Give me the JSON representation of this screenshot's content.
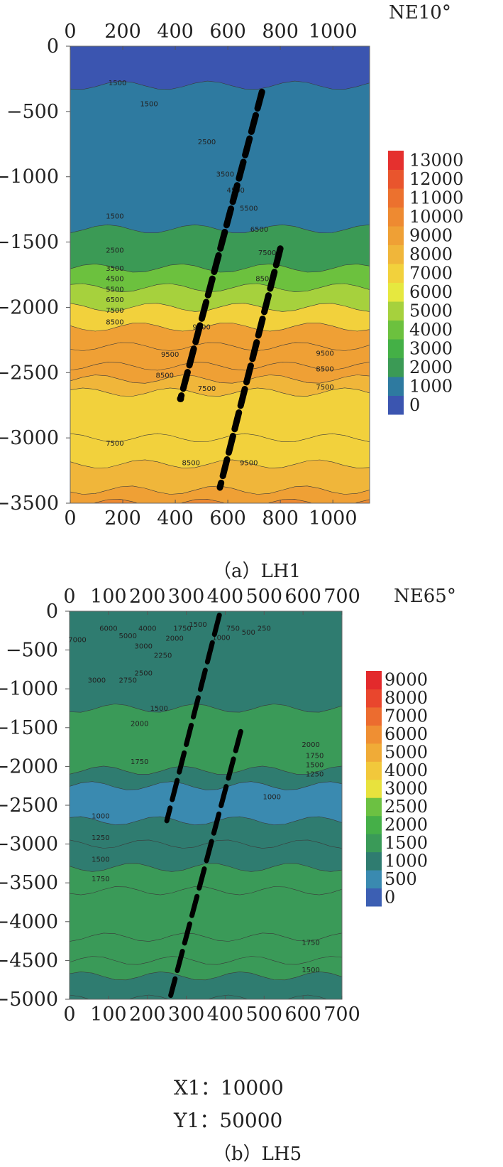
{
  "chart_data": [
    {
      "type": "heatmap",
      "orientation": "NE10°",
      "caption": "（a）LH1",
      "x_ticks": [
        0,
        200,
        400,
        600,
        800,
        1000
      ],
      "y_ticks": [
        0,
        -500,
        -1000,
        -1500,
        -2000,
        -2500,
        -3000,
        -3500
      ],
      "xlim": [
        0,
        1140
      ],
      "ylim": [
        -3500,
        0
      ],
      "colorbar": {
        "ticks": [
          0,
          1000,
          2000,
          3000,
          4000,
          5000,
          6000,
          7000,
          8000,
          9000,
          10000,
          11000,
          12000,
          13000
        ],
        "colors": [
          "#3b55b0",
          "#2e7aa0",
          "#3b9a55",
          "#44b046",
          "#6cc13e",
          "#a6d13d",
          "#e6e83f",
          "#f2d13c",
          "#f0b63a",
          "#efa035",
          "#ee8a31",
          "#ec712e",
          "#e9552d",
          "#e5302e"
        ]
      },
      "bands": [
        {
          "depth": 0,
          "value": 400
        },
        {
          "depth": -300,
          "value": 1200
        },
        {
          "depth": -1400,
          "value": 2500
        },
        {
          "depth": -1700,
          "value": 4000
        },
        {
          "depth": -1850,
          "value": 5500
        },
        {
          "depth": -2000,
          "value": 7500
        },
        {
          "depth": -2150,
          "value": 9000
        },
        {
          "depth": -2300,
          "value": 9800
        },
        {
          "depth": -2450,
          "value": 9000
        },
        {
          "depth": -2550,
          "value": 8000
        },
        {
          "depth": -2650,
          "value": 7000
        },
        {
          "depth": -3000,
          "value": 7200
        },
        {
          "depth": -3200,
          "value": 8200
        },
        {
          "depth": -3400,
          "value": 9500
        },
        {
          "depth": -3500,
          "value": 10500
        }
      ],
      "contour_labels": [
        {
          "text": "1500",
          "x": 180,
          "y": -300
        },
        {
          "text": "1500",
          "x": 300,
          "y": -460
        },
        {
          "text": "2500",
          "x": 520,
          "y": -750
        },
        {
          "text": "3500",
          "x": 590,
          "y": -1000
        },
        {
          "text": "4500",
          "x": 630,
          "y": -1120
        },
        {
          "text": "5500",
          "x": 680,
          "y": -1260
        },
        {
          "text": "6500",
          "x": 720,
          "y": -1420
        },
        {
          "text": "7500",
          "x": 750,
          "y": -1600
        },
        {
          "text": "8500",
          "x": 740,
          "y": -1800
        },
        {
          "text": "1500",
          "x": 170,
          "y": -1320
        },
        {
          "text": "2500",
          "x": 170,
          "y": -1580
        },
        {
          "text": "3500",
          "x": 170,
          "y": -1720
        },
        {
          "text": "4500",
          "x": 170,
          "y": -1800
        },
        {
          "text": "5500",
          "x": 170,
          "y": -1880
        },
        {
          "text": "6500",
          "x": 170,
          "y": -1960
        },
        {
          "text": "7500",
          "x": 170,
          "y": -2040
        },
        {
          "text": "8500",
          "x": 170,
          "y": -2130
        },
        {
          "text": "9500",
          "x": 380,
          "y": -2380
        },
        {
          "text": "8500",
          "x": 360,
          "y": -2540
        },
        {
          "text": "7500",
          "x": 520,
          "y": -2640
        },
        {
          "text": "9500",
          "x": 500,
          "y": -2170
        },
        {
          "text": "9500",
          "x": 970,
          "y": -2370
        },
        {
          "text": "8500",
          "x": 970,
          "y": -2490
        },
        {
          "text": "7500",
          "x": 970,
          "y": -2630
        },
        {
          "text": "7500",
          "x": 170,
          "y": -3060
        },
        {
          "text": "8500",
          "x": 460,
          "y": -3210
        },
        {
          "text": "9500",
          "x": 680,
          "y": -3210
        }
      ],
      "faults": [
        {
          "x1": 730,
          "y1": -350,
          "x2": 420,
          "y2": -2700
        },
        {
          "x1": 800,
          "y1": -1550,
          "x2": 570,
          "y2": -3380
        }
      ]
    },
    {
      "type": "heatmap",
      "orientation": "NE65°",
      "caption": "（b）LH5",
      "x_ticks": [
        0,
        100,
        200,
        300,
        400,
        500,
        600,
        700
      ],
      "y_ticks": [
        0,
        -500,
        -1000,
        -1500,
        -2000,
        -2500,
        -3000,
        -3500,
        -4000,
        -4500,
        -5000
      ],
      "xlim": [
        0,
        700
      ],
      "ylim": [
        -5000,
        0
      ],
      "colorbar": {
        "ticks": [
          0,
          500,
          1000,
          1500,
          2000,
          2500,
          3000,
          4000,
          5000,
          6000,
          7000,
          8000,
          9000
        ],
        "colors": [
          "#3c5fb3",
          "#3a8ab0",
          "#2f7c70",
          "#3a9a58",
          "#45af48",
          "#6cc142",
          "#e8e23d",
          "#f2c83b",
          "#f0ab37",
          "#ef8f33",
          "#ec6c2f",
          "#e9462d",
          "#e32a2c"
        ]
      },
      "bands": [
        {
          "depth": 0,
          "value": 1200
        },
        {
          "depth": -1250,
          "value": 1650
        },
        {
          "depth": -2050,
          "value": 1200
        },
        {
          "depth": -2250,
          "value": 600
        },
        {
          "depth": -2700,
          "value": 1100
        },
        {
          "depth": -3000,
          "value": 1200
        },
        {
          "depth": -3300,
          "value": 1600
        },
        {
          "depth": -3600,
          "value": 1900
        },
        {
          "depth": -4200,
          "value": 1900
        },
        {
          "depth": -4500,
          "value": 1600
        },
        {
          "depth": -4700,
          "value": 1300
        },
        {
          "depth": -5000,
          "value": 1100
        }
      ],
      "contour_labels": [
        {
          "text": "7000",
          "x": 20,
          "y": -400
        },
        {
          "text": "6000",
          "x": 100,
          "y": -250
        },
        {
          "text": "5000",
          "x": 150,
          "y": -350
        },
        {
          "text": "4000",
          "x": 200,
          "y": -250
        },
        {
          "text": "3000",
          "x": 190,
          "y": -480
        },
        {
          "text": "2000",
          "x": 270,
          "y": -380
        },
        {
          "text": "2250",
          "x": 240,
          "y": -600
        },
        {
          "text": "1750",
          "x": 290,
          "y": -250
        },
        {
          "text": "1500",
          "x": 330,
          "y": -200
        },
        {
          "text": "1000",
          "x": 390,
          "y": -370
        },
        {
          "text": "750",
          "x": 420,
          "y": -250
        },
        {
          "text": "500",
          "x": 460,
          "y": -300
        },
        {
          "text": "250",
          "x": 500,
          "y": -250
        },
        {
          "text": "3000",
          "x": 70,
          "y": -920
        },
        {
          "text": "2750",
          "x": 150,
          "y": -920
        },
        {
          "text": "2500",
          "x": 190,
          "y": -830
        },
        {
          "text": "1500",
          "x": 230,
          "y": -1280
        },
        {
          "text": "2000",
          "x": 180,
          "y": -1480
        },
        {
          "text": "1750",
          "x": 180,
          "y": -1970
        },
        {
          "text": "2000",
          "x": 620,
          "y": -1750
        },
        {
          "text": "1750",
          "x": 630,
          "y": -1890
        },
        {
          "text": "1500",
          "x": 630,
          "y": -2010
        },
        {
          "text": "1250",
          "x": 630,
          "y": -2130
        },
        {
          "text": "1000",
          "x": 520,
          "y": -2420
        },
        {
          "text": "1000",
          "x": 80,
          "y": -2670
        },
        {
          "text": "1250",
          "x": 80,
          "y": -2950
        },
        {
          "text": "1500",
          "x": 80,
          "y": -3230
        },
        {
          "text": "1750",
          "x": 80,
          "y": -3480
        },
        {
          "text": "1750",
          "x": 620,
          "y": -4300
        },
        {
          "text": "1500",
          "x": 620,
          "y": -4650
        }
      ],
      "faults": [
        {
          "x1": 385,
          "y1": -50,
          "x2": 250,
          "y2": -2700
        },
        {
          "x1": 440,
          "y1": -1550,
          "x2": 260,
          "y2": -4950
        }
      ],
      "scale": {
        "x_label": "X1：10000",
        "y_label": "Y1：50000"
      }
    }
  ]
}
